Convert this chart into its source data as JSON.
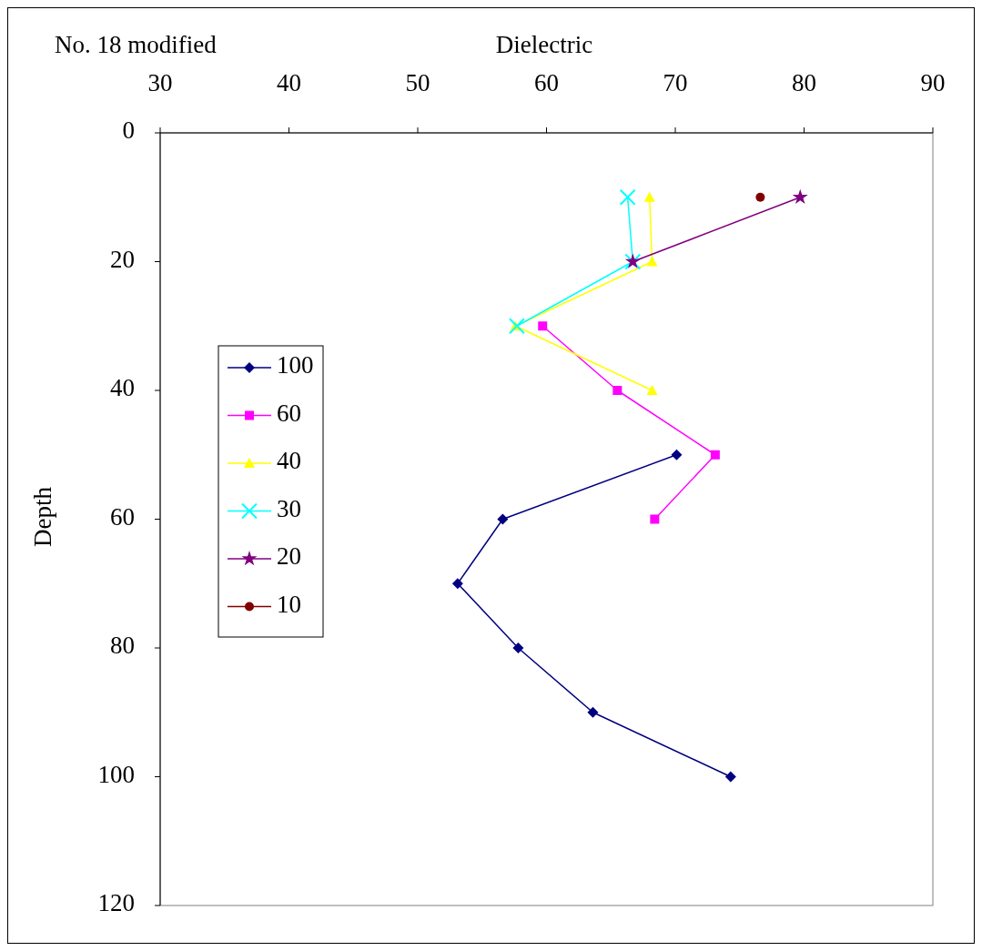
{
  "chart_data": {
    "type": "line",
    "title": "No. 18 modified",
    "xlabel": "Dielectric",
    "ylabel": "Depth",
    "xlim": [
      30,
      90
    ],
    "xticks": [
      30,
      40,
      50,
      60,
      70,
      80,
      90
    ],
    "ylim": [
      120,
      0
    ],
    "yticks": [
      0,
      20,
      40,
      60,
      80,
      100,
      120
    ],
    "grid": false,
    "legend": "left",
    "line_style": "solid",
    "series": [
      {
        "name": "100",
        "color": "#000080",
        "marker": "diamond",
        "x": [
          70.1,
          56.6,
          53.1,
          57.8,
          63.6,
          74.3
        ],
        "values": [
          50,
          60,
          70,
          80,
          90,
          100
        ]
      },
      {
        "name": "60",
        "color": "#ff00ff",
        "marker": "square",
        "x": [
          59.7,
          65.5,
          73.1,
          68.4
        ],
        "values": [
          30,
          40,
          50,
          60
        ]
      },
      {
        "name": "40",
        "color": "#ffff00",
        "marker": "triangle",
        "x": [
          68,
          68.2,
          57.6,
          68.2
        ],
        "values": [
          10,
          20,
          30,
          40
        ]
      },
      {
        "name": "30",
        "color": "#00ffff",
        "marker": "cross",
        "x": [
          66.3,
          66.7,
          57.7
        ],
        "values": [
          10,
          20,
          30
        ]
      },
      {
        "name": "20",
        "color": "#800080",
        "marker": "star",
        "x": [
          79.7,
          66.7
        ],
        "values": [
          10,
          20
        ]
      },
      {
        "name": "10",
        "color": "#800000",
        "marker": "circle",
        "x": [
          76.6
        ],
        "values": [
          10
        ]
      }
    ]
  }
}
